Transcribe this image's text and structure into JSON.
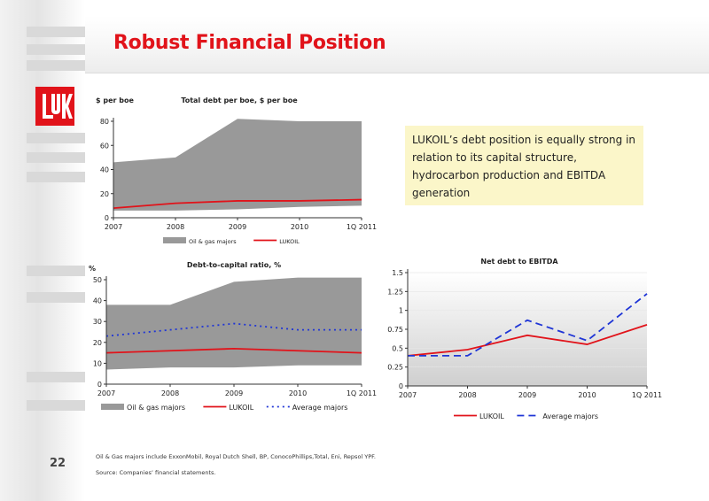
{
  "slide": {
    "title": "Robust Financial Position",
    "page_number": "22",
    "callout_text": "LUKOIL’s debt position is equally strong in relation to its capital structure, hydrocarbon production and EBITDA generation",
    "footnote_1": "Oil & Gas majors include ExxonMobil, Royal Dutch Shell, BP, ConocoPhillips,Total, Eni, Repsol YPF.",
    "footnote_2": "Source: Companies’ financial statements.",
    "logo_text": "LUK"
  },
  "colors": {
    "accent_red": "#e1131a",
    "area_gray": "#999999",
    "avg_blue": "#1f35d6",
    "callout_bg": "#fbf6c9"
  },
  "chart_data": [
    {
      "type": "area",
      "title": "Total debt per boe, $ per boe",
      "ylabel": "$ per boe",
      "categories": [
        "2007",
        "2008",
        "2009",
        "2010",
        "1Q 2011"
      ],
      "ylim": [
        0,
        80
      ],
      "yticks": [
        "0",
        "20",
        "40",
        "60",
        "80"
      ],
      "series": [
        {
          "name": "Oil & gas majors",
          "kind": "band",
          "low": [
            6,
            6,
            7,
            9,
            10
          ],
          "high": [
            46,
            50,
            82,
            80,
            80
          ]
        },
        {
          "name": "LUKOIL",
          "kind": "line",
          "values": [
            8,
            12,
            14,
            14,
            15
          ]
        }
      ],
      "legend": [
        "Oil & gas majors",
        "LUKOIL"
      ]
    },
    {
      "type": "area",
      "title": "Debt-to-capital ratio, %",
      "ylabel": "%",
      "categories": [
        "2007",
        "2008",
        "2009",
        "2010",
        "1Q 2011"
      ],
      "ylim": [
        0,
        50
      ],
      "yticks": [
        "0",
        "10",
        "20",
        "30",
        "40",
        "50"
      ],
      "series": [
        {
          "name": "Oil & gas majors",
          "kind": "band",
          "low": [
            7,
            8,
            8,
            9,
            9
          ],
          "high": [
            38,
            38,
            49,
            51,
            51
          ]
        },
        {
          "name": "LUKOIL",
          "kind": "line",
          "values": [
            15,
            16,
            17,
            16,
            15
          ]
        },
        {
          "name": "Average majors",
          "kind": "dotted",
          "values": [
            23,
            26,
            29,
            26,
            26
          ]
        }
      ],
      "legend": [
        "Oil & gas majors",
        "LUKOIL",
        "Average majors"
      ]
    },
    {
      "type": "line",
      "title": "Net debt to EBITDA",
      "categories": [
        "2007",
        "2008",
        "2009",
        "2010",
        "1Q 2011"
      ],
      "ylim": [
        0,
        1.5
      ],
      "yticks": [
        "0",
        "0.25",
        "0.5",
        "0.75",
        "1",
        "1.25",
        "1.5"
      ],
      "series": [
        {
          "name": "LUKOIL",
          "kind": "line",
          "values": [
            0.4,
            0.48,
            0.67,
            0.55,
            0.81
          ]
        },
        {
          "name": "Average majors",
          "kind": "dashed",
          "values": [
            0.4,
            0.4,
            0.87,
            0.6,
            1.22
          ]
        }
      ],
      "legend": [
        "LUKOIL",
        "Average majors"
      ]
    }
  ]
}
